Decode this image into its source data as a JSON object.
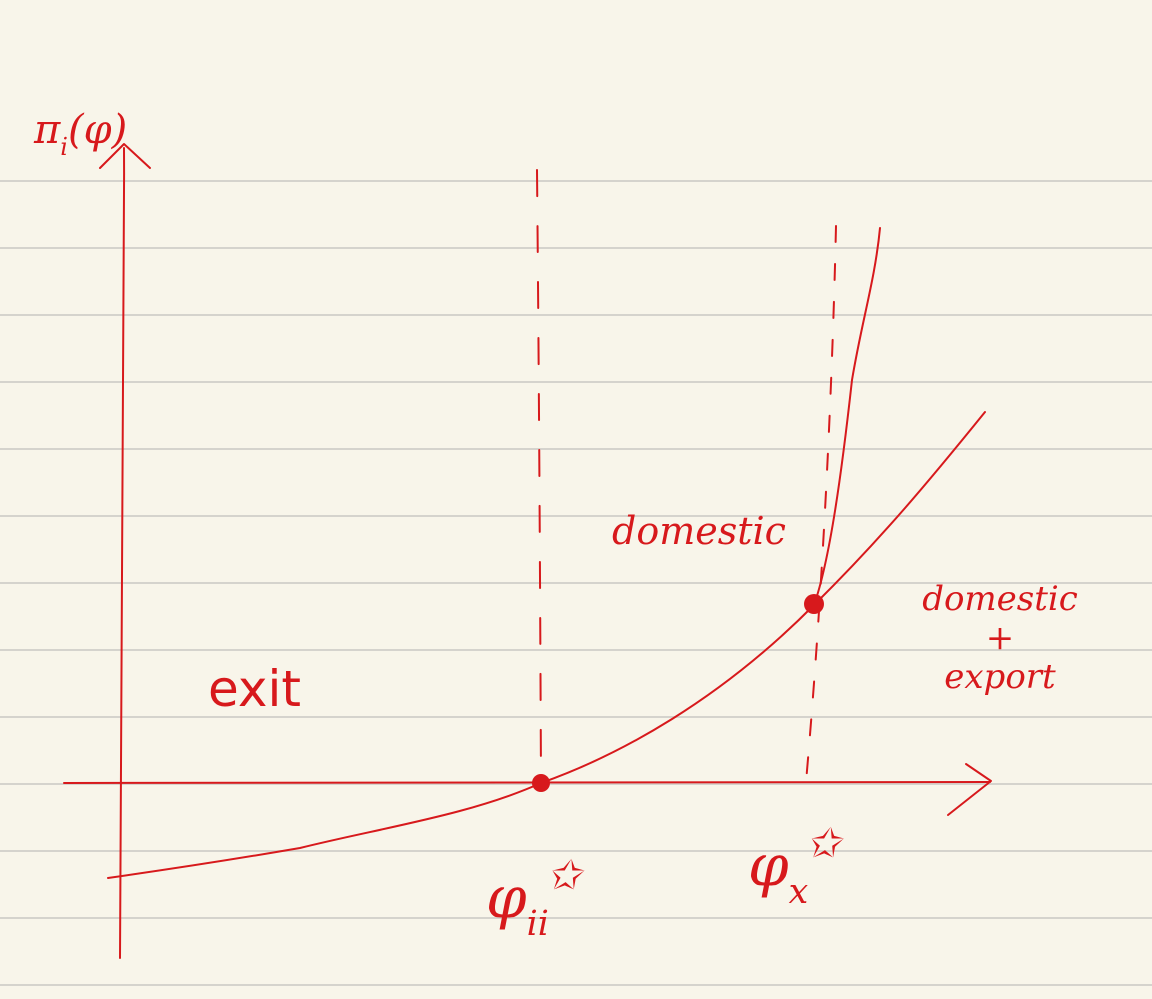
{
  "page": {
    "background_color": "#f8f5ea",
    "ruled_line_color": "#d5d3cd",
    "ink_color": "#d7191c"
  },
  "axes": {
    "y_label_main": "π",
    "y_label_sub": "i",
    "y_label_arg": "(φ)"
  },
  "regions": {
    "exit": "exit",
    "domestic": "domestic",
    "domestic_export_line1": "domestic",
    "domestic_export_plus": "+",
    "domestic_export_line2": "export"
  },
  "thresholds": {
    "phi_ii_symbol": "φ",
    "phi_ii_sub": "ii",
    "phi_ii_star": "✩",
    "phi_x_symbol": "φ",
    "phi_x_sub": "x",
    "phi_x_star": "✩"
  },
  "curves": [
    {
      "name": "domestic profit",
      "passes_through": [
        "phi_ii (zero profit)",
        "phi_x"
      ]
    },
    {
      "name": "domestic + export profit",
      "starts_at": "phi_x"
    }
  ]
}
